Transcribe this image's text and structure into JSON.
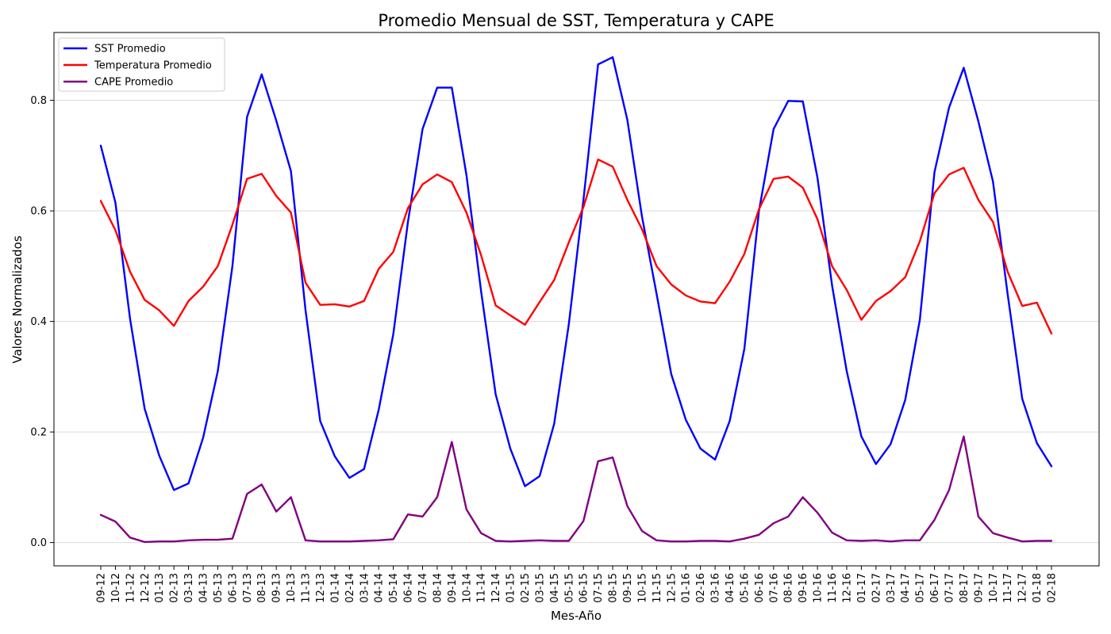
{
  "chart_data": {
    "type": "line",
    "title": "Promedio Mensual de SST, Temperatura y CAPE",
    "xlabel": "Mes-Año",
    "ylabel": "Valores Normalizados",
    "ylim": [
      -0.04,
      0.925
    ],
    "yticks": [
      0.0,
      0.2,
      0.4,
      0.6,
      0.8
    ],
    "ytick_labels": [
      "0.0",
      "0.2",
      "0.4",
      "0.6",
      "0.8"
    ],
    "grid": "horizontal",
    "legend_position": "top-left",
    "categories": [
      "09-12",
      "10-12",
      "11-12",
      "12-12",
      "01-13",
      "02-13",
      "03-13",
      "04-13",
      "05-13",
      "06-13",
      "07-13",
      "08-13",
      "09-13",
      "10-13",
      "11-13",
      "12-13",
      "01-14",
      "02-14",
      "03-14",
      "04-14",
      "05-14",
      "06-14",
      "07-14",
      "08-14",
      "09-14",
      "10-14",
      "11-14",
      "12-14",
      "01-15",
      "02-15",
      "03-15",
      "04-15",
      "05-15",
      "06-15",
      "07-15",
      "08-15",
      "09-15",
      "10-15",
      "11-15",
      "12-15",
      "01-16",
      "02-16",
      "03-16",
      "04-16",
      "05-16",
      "06-16",
      "07-16",
      "08-16",
      "09-16",
      "10-16",
      "11-16",
      "12-16",
      "01-17",
      "02-17",
      "03-17",
      "04-17",
      "05-17",
      "06-17",
      "07-17",
      "08-17",
      "09-17",
      "10-17",
      "11-17",
      "12-17",
      "01-18",
      "02-18"
    ],
    "series": [
      {
        "name": "SST Promedio",
        "color": "#0000ff",
        "values": [
          0.718,
          0.615,
          0.405,
          0.242,
          0.157,
          0.095,
          0.107,
          0.19,
          0.31,
          0.5,
          0.77,
          0.847,
          0.763,
          0.672,
          0.42,
          0.22,
          0.156,
          0.117,
          0.133,
          0.24,
          0.377,
          0.58,
          0.748,
          0.823,
          0.823,
          0.665,
          0.455,
          0.268,
          0.17,
          0.102,
          0.12,
          0.215,
          0.395,
          0.62,
          0.865,
          0.878,
          0.765,
          0.59,
          0.45,
          0.305,
          0.222,
          0.17,
          0.15,
          0.22,
          0.35,
          0.6,
          0.748,
          0.799,
          0.798,
          0.66,
          0.465,
          0.31,
          0.192,
          0.142,
          0.178,
          0.258,
          0.403,
          0.67,
          0.787,
          0.859,
          0.762,
          0.653,
          0.45,
          0.26,
          0.18,
          0.138
        ]
      },
      {
        "name": "Temperatura Promedio",
        "color": "#ff0000",
        "values": [
          0.618,
          0.565,
          0.49,
          0.439,
          0.42,
          0.392,
          0.437,
          0.463,
          0.5,
          0.575,
          0.658,
          0.667,
          0.627,
          0.597,
          0.47,
          0.43,
          0.431,
          0.427,
          0.437,
          0.495,
          0.526,
          0.605,
          0.648,
          0.666,
          0.652,
          0.597,
          0.52,
          0.429,
          0.411,
          0.394,
          0.435,
          0.475,
          0.543,
          0.607,
          0.693,
          0.68,
          0.62,
          0.567,
          0.5,
          0.467,
          0.447,
          0.436,
          0.433,
          0.472,
          0.522,
          0.603,
          0.658,
          0.662,
          0.642,
          0.585,
          0.5,
          0.457,
          0.403,
          0.437,
          0.455,
          0.48,
          0.545,
          0.632,
          0.666,
          0.678,
          0.62,
          0.58,
          0.49,
          0.428,
          0.434,
          0.378
        ]
      },
      {
        "name": "CAPE Promedio",
        "color": "#800080",
        "values": [
          0.05,
          0.038,
          0.009,
          0.001,
          0.002,
          0.002,
          0.004,
          0.005,
          0.005,
          0.007,
          0.088,
          0.105,
          0.056,
          0.082,
          0.004,
          0.002,
          0.002,
          0.002,
          0.003,
          0.004,
          0.006,
          0.051,
          0.047,
          0.082,
          0.182,
          0.06,
          0.017,
          0.003,
          0.002,
          0.003,
          0.004,
          0.003,
          0.003,
          0.039,
          0.147,
          0.154,
          0.066,
          0.021,
          0.004,
          0.002,
          0.002,
          0.003,
          0.003,
          0.002,
          0.007,
          0.014,
          0.035,
          0.047,
          0.082,
          0.054,
          0.018,
          0.004,
          0.003,
          0.004,
          0.002,
          0.004,
          0.004,
          0.041,
          0.095,
          0.192,
          0.047,
          0.017,
          0.009,
          0.002,
          0.003,
          0.003
        ]
      }
    ]
  }
}
